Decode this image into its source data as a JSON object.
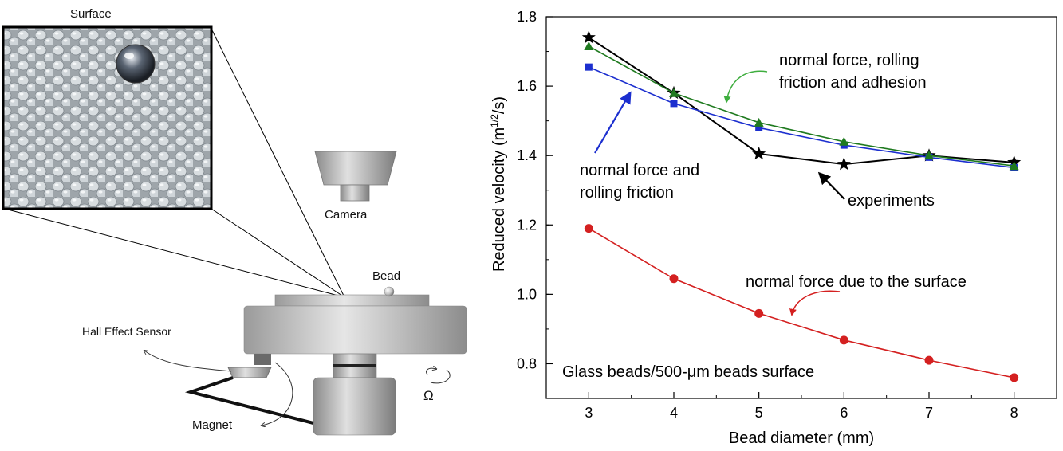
{
  "apparatus": {
    "labels": {
      "surface": "Surface",
      "camera": "Camera",
      "bead": "Bead",
      "sensor": "Hall Effect Sensor",
      "magnet": "Magnet",
      "omega": "Ω"
    }
  },
  "chart_data": {
    "type": "line",
    "title": "",
    "xlabel": "Bead diameter (mm)",
    "ylabel_main": "Reduced velocity (m",
    "ylabel_sup": "1/2",
    "ylabel_tail": "/s)",
    "xlim": [
      2.5,
      8.5
    ],
    "ylim": [
      0.7,
      1.8
    ],
    "xticks": [
      3,
      4,
      5,
      6,
      7,
      8
    ],
    "yticks": [
      0.8,
      1.0,
      1.2,
      1.4,
      1.6,
      1.8
    ],
    "ytick_labels": [
      "0.8",
      "1.0",
      "1.2",
      "1.4",
      "1.6",
      "1.8"
    ],
    "x": [
      3,
      4,
      5,
      6,
      7,
      8
    ],
    "series": [
      {
        "key": "experiments",
        "values": [
          1.74,
          1.58,
          1.405,
          1.375,
          1.4,
          1.38
        ],
        "color": "#000000",
        "marker": "star"
      },
      {
        "key": "normal_rolling",
        "values": [
          1.655,
          1.55,
          1.48,
          1.43,
          1.395,
          1.365
        ],
        "color": "#1c2fcf",
        "marker": "square"
      },
      {
        "key": "normal_rolling_adhesion",
        "values": [
          1.715,
          1.58,
          1.495,
          1.44,
          1.4,
          1.37
        ],
        "color": "#1f7a1f",
        "marker": "triangle"
      },
      {
        "key": "normal_surface",
        "values": [
          1.19,
          1.045,
          0.945,
          0.868,
          0.81,
          0.76
        ],
        "color": "#d42020",
        "marker": "circle"
      }
    ],
    "annotations": {
      "green_line1": "normal force, rolling",
      "green_line2": "friction and adhesion",
      "blue_line1": "normal force and",
      "blue_line2": "rolling friction",
      "black": "experiments",
      "red": "normal force due to the surface",
      "note": "Glass beads/500-μm beads surface"
    },
    "colors": {
      "green": "#2a8a2a",
      "blue": "#1c2fcf",
      "red": "#d42020",
      "black": "#000000"
    }
  }
}
